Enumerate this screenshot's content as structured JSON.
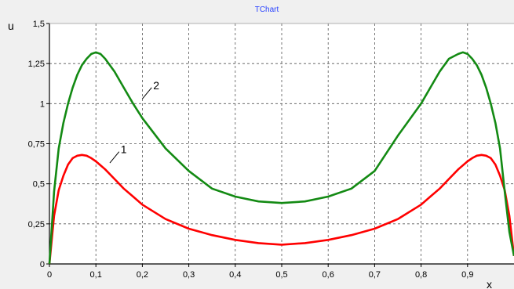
{
  "chart_data": {
    "type": "line",
    "title": "TChart",
    "xlabel": "x",
    "ylabel": "u",
    "xlim": [
      0,
      1
    ],
    "ylim": [
      0,
      1.5
    ],
    "grid": true,
    "x_ticks": [
      "0",
      "0,1",
      "0,2",
      "0,3",
      "0,4",
      "0,5",
      "0,6",
      "0,7",
      "0,8",
      "0,9"
    ],
    "y_ticks": [
      "0",
      "0,25",
      "0,5",
      "0,75",
      "1",
      "1,25",
      "1,5"
    ],
    "series": [
      {
        "label": "1",
        "color": "#ff0000",
        "x": [
          0,
          0.01,
          0.02,
          0.03,
          0.04,
          0.05,
          0.06,
          0.07,
          0.08,
          0.09,
          0.1,
          0.12,
          0.14,
          0.16,
          0.18,
          0.2,
          0.25,
          0.3,
          0.35,
          0.4,
          0.45,
          0.5,
          0.55,
          0.6,
          0.65,
          0.7,
          0.75,
          0.8,
          0.82,
          0.84,
          0.86,
          0.88,
          0.9,
          0.91,
          0.92,
          0.93,
          0.94,
          0.95,
          0.96,
          0.97,
          0.98,
          0.99,
          1.0
        ],
        "y": [
          0,
          0.3,
          0.46,
          0.55,
          0.62,
          0.66,
          0.675,
          0.68,
          0.675,
          0.66,
          0.64,
          0.59,
          0.53,
          0.47,
          0.42,
          0.37,
          0.28,
          0.22,
          0.18,
          0.15,
          0.13,
          0.12,
          0.13,
          0.15,
          0.18,
          0.22,
          0.28,
          0.37,
          0.42,
          0.47,
          0.53,
          0.59,
          0.64,
          0.66,
          0.675,
          0.68,
          0.675,
          0.66,
          0.62,
          0.55,
          0.46,
          0.3,
          0.05
        ]
      },
      {
        "label": "2",
        "color": "#138a13",
        "x": [
          0,
          0.01,
          0.02,
          0.03,
          0.04,
          0.05,
          0.06,
          0.07,
          0.08,
          0.09,
          0.1,
          0.11,
          0.12,
          0.14,
          0.16,
          0.18,
          0.2,
          0.25,
          0.3,
          0.35,
          0.4,
          0.45,
          0.5,
          0.55,
          0.6,
          0.65,
          0.7,
          0.75,
          0.8,
          0.82,
          0.84,
          0.86,
          0.88,
          0.89,
          0.9,
          0.91,
          0.92,
          0.93,
          0.94,
          0.95,
          0.96,
          0.97,
          0.98,
          0.99,
          1.0
        ],
        "y": [
          0,
          0.45,
          0.72,
          0.88,
          1.0,
          1.1,
          1.18,
          1.24,
          1.28,
          1.31,
          1.32,
          1.31,
          1.28,
          1.2,
          1.1,
          1.0,
          0.91,
          0.72,
          0.58,
          0.47,
          0.42,
          0.39,
          0.38,
          0.39,
          0.42,
          0.47,
          0.58,
          0.8,
          1.0,
          1.1,
          1.2,
          1.28,
          1.31,
          1.32,
          1.31,
          1.28,
          1.24,
          1.18,
          1.1,
          1.0,
          0.88,
          0.72,
          0.45,
          0.2,
          0.05
        ]
      }
    ]
  }
}
